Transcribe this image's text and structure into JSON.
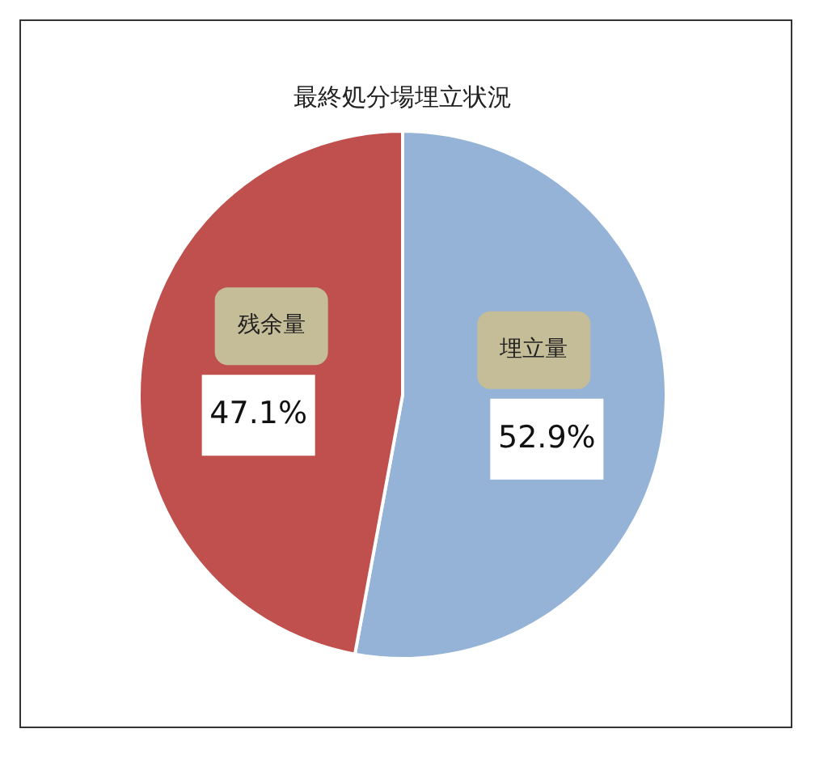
{
  "chart_data": {
    "type": "pie",
    "title": "最終処分場埋立状況",
    "categories": [
      "埋立量",
      "残余量"
    ],
    "values": [
      52.9,
      47.1
    ],
    "value_labels": [
      "52.9%",
      "47.1%"
    ],
    "colors": [
      "#95b3d7",
      "#c0504d"
    ],
    "legend": false
  }
}
